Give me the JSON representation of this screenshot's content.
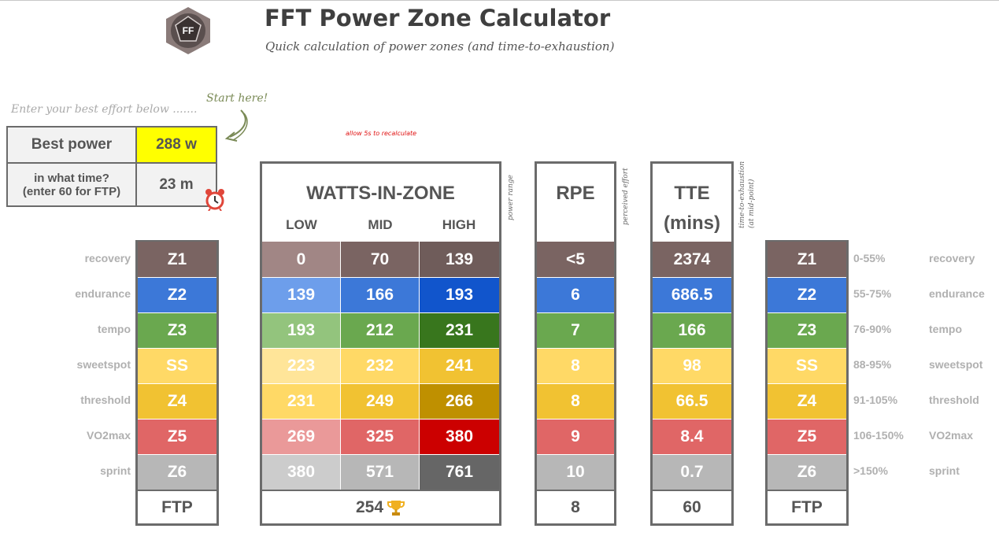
{
  "header": {
    "title": "FFT Power Zone Calculator",
    "subtitle": "Quick calculation of power zones (and time-to-exhaustion)",
    "logo_text": "FF"
  },
  "input": {
    "prompt": "Enter your best effort below .......",
    "start_hint": "Start here!",
    "recalc_note": "allow 5s to recalculate",
    "best_power_label": "Best power",
    "best_power_value": "288 w",
    "time_label_line1": "in what time?",
    "time_label_line2": "(enter 60 for FTP)",
    "time_value": "23 m"
  },
  "watts_table": {
    "title": "WATTS-IN-ZONE",
    "low_label": "LOW",
    "mid_label": "MID",
    "high_label": "HIGH",
    "side_note": "power range",
    "footer_value": "254"
  },
  "rpe_table": {
    "title": "RPE",
    "side_note": "perceived effort",
    "footer_value": "8"
  },
  "tte_table": {
    "title_line1": "TTE",
    "title_line2": "(mins)",
    "side_note_line1": "time-to-exhaustion",
    "side_note_line2": "(at mid-point)",
    "footer_value": "60"
  },
  "zone_footer": "FTP",
  "zones": [
    {
      "name": "recovery",
      "code": "Z1",
      "low": "0",
      "mid": "70",
      "high": "139",
      "rpe": "<5",
      "tte": "2374",
      "pct": "0-55%",
      "color": "#7a6462",
      "low_color": "#a18685",
      "mid_color": "#7a6462",
      "high_color": "#6f5c5a"
    },
    {
      "name": "endurance",
      "code": "Z2",
      "low": "139",
      "mid": "166",
      "high": "193",
      "rpe": "6",
      "tte": "686.5",
      "pct": "55-75%",
      "color": "#3c78d8",
      "low_color": "#6d9eeb",
      "mid_color": "#3c78d8",
      "high_color": "#1155cc"
    },
    {
      "name": "tempo",
      "code": "Z3",
      "low": "193",
      "mid": "212",
      "high": "231",
      "rpe": "7",
      "tte": "166",
      "pct": "76-90%",
      "color": "#6aa84f",
      "low_color": "#93c47d",
      "mid_color": "#6aa84f",
      "high_color": "#38761d"
    },
    {
      "name": "sweetspot",
      "code": "SS",
      "low": "223",
      "mid": "232",
      "high": "241",
      "rpe": "8",
      "tte": "98",
      "pct": "88-95%",
      "color": "#ffd966",
      "low_color": "#ffe599",
      "mid_color": "#ffd966",
      "high_color": "#f1c232"
    },
    {
      "name": "threshold",
      "code": "Z4",
      "low": "231",
      "mid": "249",
      "high": "266",
      "rpe": "8",
      "tte": "66.5",
      "pct": "91-105%",
      "color": "#f1c232",
      "low_color": "#ffd966",
      "mid_color": "#f1c232",
      "high_color": "#bf9000"
    },
    {
      "name": "VO2max",
      "code": "Z5",
      "low": "269",
      "mid": "325",
      "high": "380",
      "rpe": "9",
      "tte": "8.4",
      "pct": "106-150%",
      "color": "#e06666",
      "low_color": "#ea9999",
      "mid_color": "#e06666",
      "high_color": "#cc0000"
    },
    {
      "name": "sprint",
      "code": "Z6",
      "low": "380",
      "mid": "571",
      "high": "761",
      "rpe": "10",
      "tte": "0.7",
      "pct": ">150%",
      "color": "#b7b7b7",
      "low_color": "#cccccc",
      "mid_color": "#b7b7b7",
      "high_color": "#666666"
    }
  ]
}
